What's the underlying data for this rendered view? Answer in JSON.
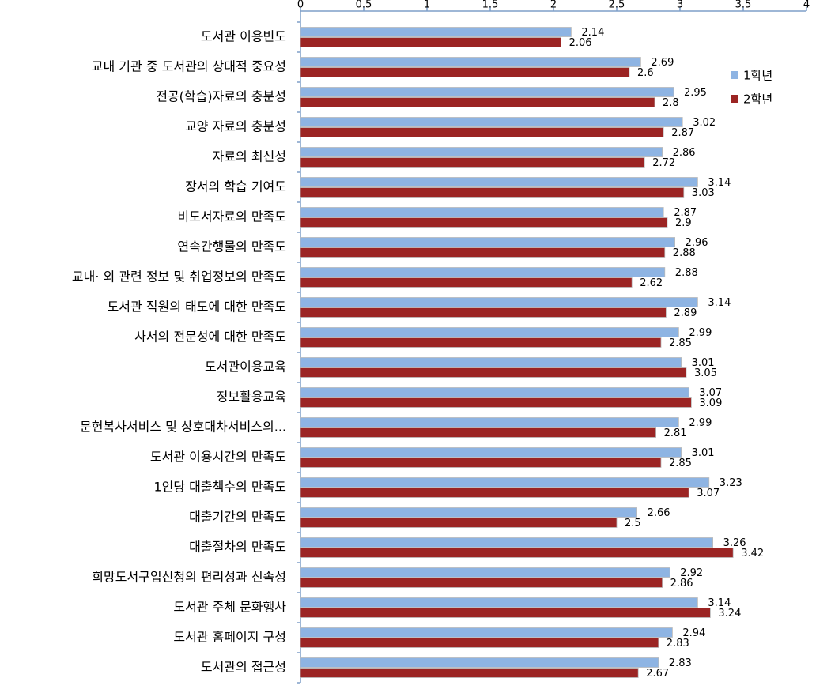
{
  "chart_data": {
    "type": "hbar",
    "categories": [
      "도서관 이용빈도",
      "교내 기관 중 도서관의 상대적 중요성",
      "전공(학습)자료의 충분성",
      "교양 자료의 충분성",
      "자료의 최신성",
      "장서의 학습 기여도",
      "비도서자료의 만족도",
      "연속간행물의 만족도",
      "교내· 외 관련 정보 및 취업정보의 만족도",
      "도서관 직원의 태도에 대한 만족도",
      "사서의 전문성에 대한 만족도",
      "도서관이용교육",
      "정보활용교육",
      "문헌복사서비스 및 상호대차서비스의...",
      "도서관 이용시간의 만족도",
      "1인당 대출책수의 만족도",
      "대출기간의 만족도",
      "대출절차의 만족도",
      "희망도서구입신청의 편리성과 신속성",
      "도서관 주체 문화행사",
      "도서관 홈페이지 구성",
      "도서관의 접근성"
    ],
    "series": [
      {
        "name": "1학년",
        "color": "#8eb4e3",
        "values": [
          2.14,
          2.69,
          2.95,
          3.02,
          2.86,
          3.14,
          2.87,
          2.96,
          2.88,
          3.14,
          2.99,
          3.01,
          3.07,
          2.99,
          3.01,
          3.23,
          2.66,
          3.26,
          2.92,
          3.14,
          2.94,
          2.83
        ]
      },
      {
        "name": "2학년",
        "color": "#9b2423",
        "values": [
          2.06,
          2.6,
          2.8,
          2.87,
          2.72,
          3.03,
          2.9,
          2.88,
          2.62,
          2.89,
          2.85,
          3.05,
          3.09,
          2.81,
          2.85,
          3.07,
          2.5,
          3.42,
          2.86,
          3.24,
          2.83,
          2.67
        ]
      }
    ],
    "xlim": [
      0,
      4
    ],
    "xticks": [
      0,
      0.5,
      1,
      1.5,
      2,
      2.5,
      3,
      3.5,
      4
    ]
  }
}
